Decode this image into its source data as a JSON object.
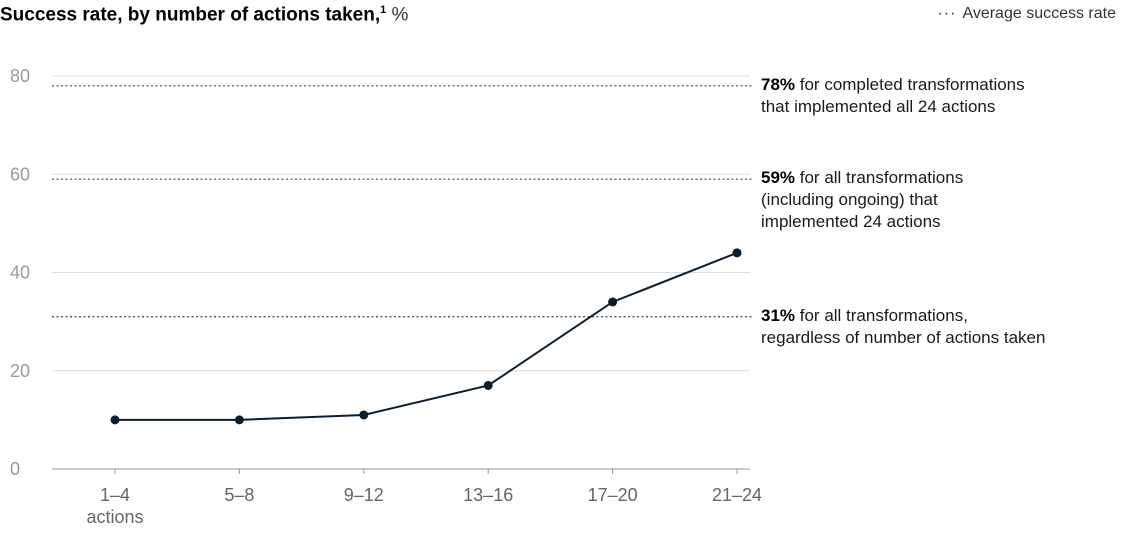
{
  "title": "Success rate, by number of actions taken,",
  "title_footnote": "1",
  "title_unit": "%",
  "legend": "Average success rate",
  "colors": {
    "line": "#0b1e2d",
    "text": "#000000",
    "grid": "#dddddd",
    "axis": "#999999",
    "tick_label": "#9a9a9a"
  },
  "chart_data": {
    "type": "line",
    "title": "Success rate, by number of actions taken, %",
    "xlabel": "",
    "ylabel": "",
    "categories": [
      "1–4 actions",
      "5–8",
      "9–12",
      "13–16",
      "17–20",
      "21–24"
    ],
    "x_tick_labels": [
      [
        "1–4",
        "actions"
      ],
      [
        "5–8"
      ],
      [
        "9–12"
      ],
      [
        "13–16"
      ],
      [
        "17–20"
      ],
      [
        "21–24"
      ]
    ],
    "series": [
      {
        "values": [
          10,
          10,
          11,
          17,
          34,
          44
        ]
      }
    ],
    "ylim": [
      0,
      80
    ],
    "yticks": [
      0,
      20,
      40,
      60,
      80
    ],
    "grid": true,
    "reference_lines": [
      {
        "value": 78,
        "label_bold": "78%",
        "label_rest": " for completed transformations",
        "label_lines": [
          "that implemented all 24 actions"
        ]
      },
      {
        "value": 59,
        "label_bold": "59%",
        "label_rest": " for all transformations",
        "label_lines": [
          "(including ongoing) that",
          "implemented 24 actions"
        ]
      },
      {
        "value": 31,
        "label_bold": "31%",
        "label_rest": " for all transformations,",
        "label_lines": [
          "regardless of number of actions taken"
        ]
      }
    ]
  }
}
